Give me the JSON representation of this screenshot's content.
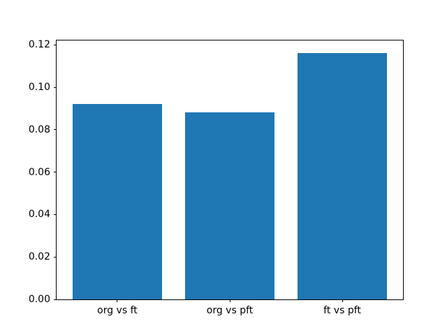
{
  "chart_data": {
    "type": "bar",
    "title": "",
    "xlabel": "",
    "ylabel": "",
    "categories": [
      "org vs ft",
      "org vs pft",
      "ft vs pft"
    ],
    "values": [
      0.092,
      0.0881,
      0.1163
    ],
    "bar_color": "#1f77b4",
    "bar_width": 0.8,
    "xlim": [
      -0.54,
      2.54
    ],
    "ylim": [
      0,
      0.1221
    ],
    "yticks": [
      0,
      0.02,
      0.04,
      0.06,
      0.08,
      0.1,
      0.12
    ],
    "ytick_decimals": 2,
    "grid": false,
    "legend_position": "none",
    "background_color": "#ffffff",
    "spine_color": "#000000"
  }
}
